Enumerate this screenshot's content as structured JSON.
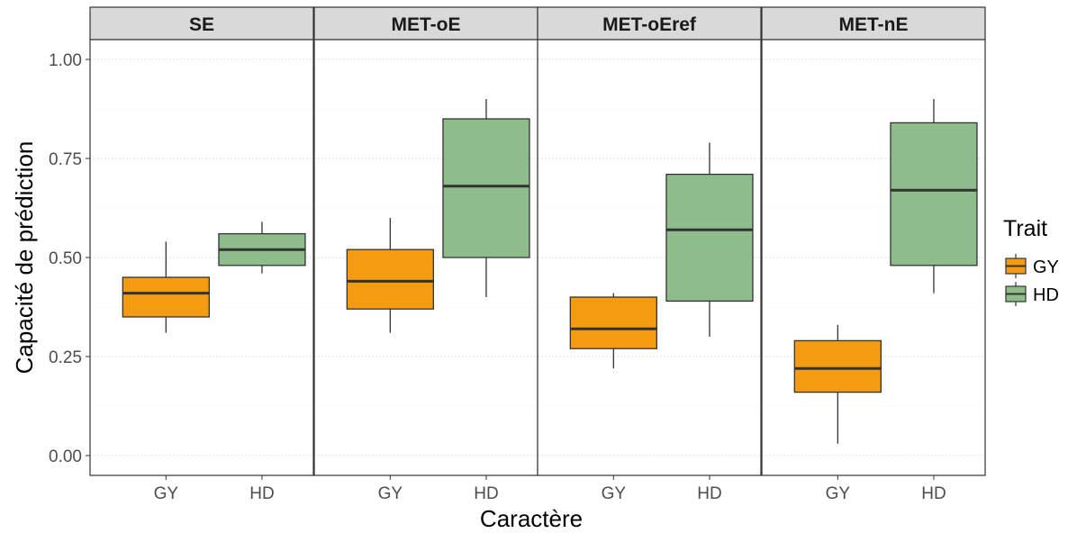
{
  "chart_data": {
    "type": "boxplot",
    "xlabel": "Caractère",
    "ylabel": "Capacité de prédiction",
    "ylim": [
      -0.05,
      1.05
    ],
    "yticks": [
      "0.00",
      "0.25",
      "0.50",
      "0.75",
      "1.00"
    ],
    "ytick_values": [
      0,
      0.25,
      0.5,
      0.75,
      1.0
    ],
    "categories": [
      "GY",
      "HD"
    ],
    "grid": true,
    "legend": {
      "title": "Trait",
      "placement": "right",
      "entries": [
        {
          "name": "GY",
          "color": "#F39C12"
        },
        {
          "name": "HD",
          "color": "#8FBC8B"
        }
      ]
    },
    "panels": [
      {
        "title": "SE",
        "boxes": [
          {
            "trait": "GY",
            "min": 0.31,
            "q1": 0.35,
            "median": 0.41,
            "q3": 0.45,
            "max": 0.54
          },
          {
            "trait": "HD",
            "min": 0.46,
            "q1": 0.48,
            "median": 0.52,
            "q3": 0.56,
            "max": 0.59
          }
        ]
      },
      {
        "title": "MET-oE",
        "boxes": [
          {
            "trait": "GY",
            "min": 0.31,
            "q1": 0.37,
            "median": 0.44,
            "q3": 0.52,
            "max": 0.6
          },
          {
            "trait": "HD",
            "min": 0.4,
            "q1": 0.5,
            "median": 0.68,
            "q3": 0.85,
            "max": 0.9
          }
        ]
      },
      {
        "title": "MET-oEref",
        "boxes": [
          {
            "trait": "GY",
            "min": 0.22,
            "q1": 0.27,
            "median": 0.32,
            "q3": 0.4,
            "max": 0.41
          },
          {
            "trait": "HD",
            "min": 0.3,
            "q1": 0.39,
            "median": 0.57,
            "q3": 0.71,
            "max": 0.79
          }
        ]
      },
      {
        "title": "MET-nE",
        "boxes": [
          {
            "trait": "GY",
            "min": 0.03,
            "q1": 0.16,
            "median": 0.22,
            "q3": 0.29,
            "max": 0.33
          },
          {
            "trait": "HD",
            "min": 0.41,
            "q1": 0.48,
            "median": 0.67,
            "q3": 0.84,
            "max": 0.9
          }
        ]
      }
    ]
  }
}
